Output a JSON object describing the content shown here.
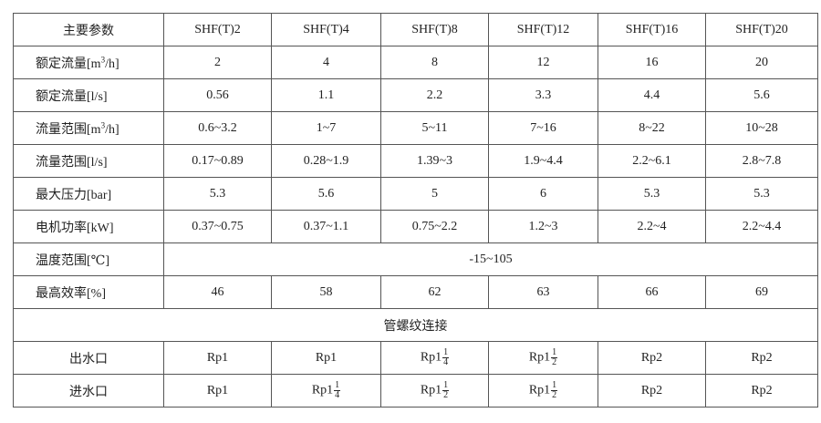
{
  "header": {
    "label": "主要参数",
    "models": [
      "SHF(T)2",
      "SHF(T)4",
      "SHF(T)8",
      "SHF(T)12",
      "SHF(T)16",
      "SHF(T)20"
    ]
  },
  "rows": [
    {
      "label": "额定流量[m",
      "sup": "3",
      "label_suffix": "/h]",
      "values": [
        "2",
        "4",
        "8",
        "12",
        "16",
        "20"
      ]
    },
    {
      "label": "额定流量[l/s]",
      "values": [
        "0.56",
        "1.1",
        "2.2",
        "3.3",
        "4.4",
        "5.6"
      ]
    },
    {
      "label": "流量范围[m",
      "sup": "3",
      "label_suffix": "/h]",
      "values": [
        "0.6~3.2",
        "1~7",
        "5~11",
        "7~16",
        "8~22",
        "10~28"
      ]
    },
    {
      "label": "流量范围[l/s]",
      "values": [
        "0.17~0.89",
        "0.28~1.9",
        "1.39~3",
        "1.9~4.4",
        "2.2~6.1",
        "2.8~7.8"
      ]
    },
    {
      "label": "最大压力[bar]",
      "values": [
        "5.3",
        "5.6",
        "5",
        "6",
        "5.3",
        "5.3"
      ]
    },
    {
      "label": "电机功率[kW]",
      "values": [
        "0.37~0.75",
        "0.37~1.1",
        "0.75~2.2",
        "1.2~3",
        "2.2~4",
        "2.2~4.4"
      ]
    }
  ],
  "temperature": {
    "label": "温度范围[℃]",
    "value": "-15~105"
  },
  "efficiency": {
    "label": "最高效率[%]",
    "values": [
      "46",
      "58",
      "62",
      "63",
      "66",
      "69"
    ]
  },
  "connection_title": "管螺纹连接",
  "outlet": {
    "label": "出水口",
    "values": [
      {
        "base": "Rp1"
      },
      {
        "base": "Rp1"
      },
      {
        "base": "Rp1",
        "num": "1",
        "den": "4"
      },
      {
        "base": "Rp1",
        "num": "1",
        "den": "2"
      },
      {
        "base": "Rp2"
      },
      {
        "base": "Rp2"
      }
    ]
  },
  "inlet": {
    "label": "进水口",
    "values": [
      {
        "base": "Rp1"
      },
      {
        "base": "Rp1",
        "num": "1",
        "den": "4"
      },
      {
        "base": "Rp1",
        "num": "1",
        "den": "2"
      },
      {
        "base": "Rp1",
        "num": "1",
        "den": "2"
      },
      {
        "base": "Rp2"
      },
      {
        "base": "Rp2"
      }
    ]
  }
}
